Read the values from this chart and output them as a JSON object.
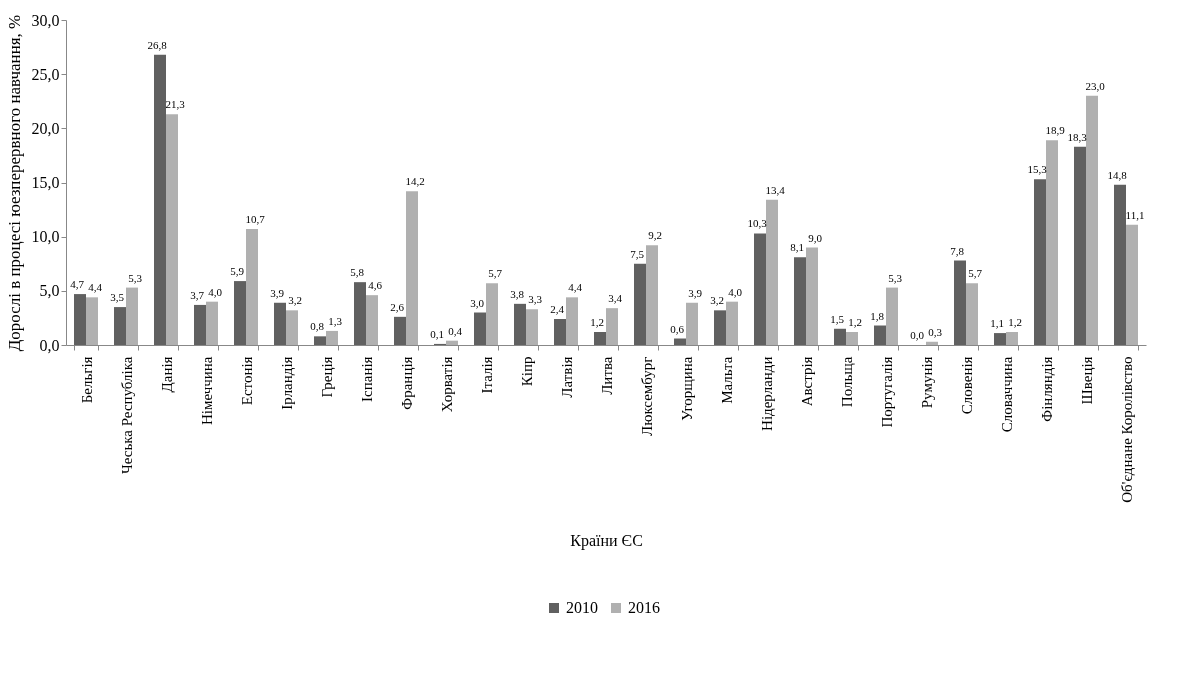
{
  "chart_data": {
    "type": "bar",
    "xlabel": "Країни ЄС",
    "ylabel": "Дорослі в процесі юезперервного навчання, %",
    "categories": [
      "Бельгія",
      "Чеська Республіка",
      "Данія",
      "Німеччина",
      "Естонія",
      "Ірландія",
      "Греція",
      "Іспанія",
      "Франція",
      "Хорватія",
      "Італія",
      "Кіпр",
      "Латвія",
      "Литва",
      "Люксембург",
      "Угорщина",
      "Мальта",
      "Нідерланди",
      "Австрія",
      "Польща",
      "Португалія",
      "Румунія",
      "Словенія",
      "Словаччина",
      "Фінляндія",
      "Швеція",
      "Об'єднане Королівство"
    ],
    "series": [
      {
        "name": "2010",
        "color": "#606060",
        "values": [
          4.7,
          3.5,
          26.8,
          3.7,
          5.9,
          3.9,
          0.8,
          5.8,
          2.6,
          0.1,
          3.0,
          3.8,
          2.4,
          1.2,
          7.5,
          0.6,
          3.2,
          10.3,
          8.1,
          1.5,
          1.8,
          0.0,
          7.8,
          1.1,
          15.3,
          18.3,
          14.8
        ],
        "value_labels": [
          "4,7",
          "3,5",
          "26,8",
          "3,7",
          "5,9",
          "3,9",
          "0,8",
          "5,8",
          "2,6",
          "0,1",
          "3,0",
          "3,8",
          "2,4",
          "1,2",
          "7,5",
          "0,6",
          "3,2",
          "10,3",
          "8,1",
          "1,5",
          "1,8",
          "0,0",
          "7,8",
          "1,1",
          "15,3",
          "18,3",
          "14,8"
        ]
      },
      {
        "name": "2016",
        "color": "#b0b0b0",
        "values": [
          4.4,
          5.3,
          21.3,
          4.0,
          10.7,
          3.2,
          1.3,
          4.6,
          14.2,
          0.4,
          5.7,
          3.3,
          4.4,
          3.4,
          9.2,
          3.9,
          4.0,
          13.4,
          9.0,
          1.2,
          5.3,
          0.3,
          5.7,
          1.2,
          18.9,
          23.0,
          11.1
        ],
        "value_labels": [
          "4,4",
          "5,3",
          "21,3",
          "4,0",
          "10,7",
          "3,2",
          "1,3",
          "4,6",
          "14,2",
          "0,4",
          "5,7",
          "3,3",
          "4,4",
          "3,4",
          "9,2",
          "3,9",
          "4,0",
          "13,4",
          "9,0",
          "1,2",
          "5,3",
          "0,3",
          "5,7",
          "1,2",
          "18,9",
          "23,0",
          "11,1"
        ]
      }
    ],
    "ylim": [
      0,
      30
    ],
    "yticks": [
      {
        "value": 0,
        "label": "0,0"
      },
      {
        "value": 5,
        "label": "5,0"
      },
      {
        "value": 10,
        "label": "10,0"
      },
      {
        "value": 15,
        "label": "15,0"
      },
      {
        "value": 20,
        "label": "20,0"
      },
      {
        "value": 25,
        "label": "25,0"
      },
      {
        "value": 30,
        "label": "30,0"
      }
    ],
    "grid": false,
    "legend": "bottom"
  }
}
